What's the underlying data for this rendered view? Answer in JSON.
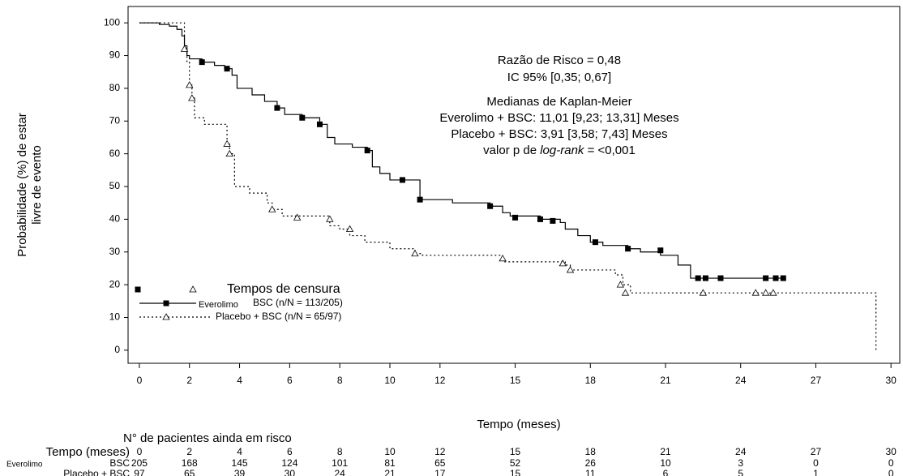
{
  "chart_data": {
    "type": "line",
    "step": "post",
    "x_label": "Tempo (meses)",
    "y_label": [
      "Probabilidade (%) de estar",
      "livre de evento"
    ],
    "xlim": [
      -0.45,
      30.35
    ],
    "ylim": [
      -4,
      105
    ],
    "xticks": [
      0,
      2,
      4,
      6,
      8,
      10,
      12,
      15,
      18,
      21,
      24,
      27,
      30
    ],
    "yticks": [
      0,
      10,
      20,
      30,
      40,
      50,
      60,
      70,
      80,
      90,
      100
    ],
    "annotations": [
      "Razão de Risco = 0,48",
      "IC 95% [0,35; 0,67]",
      "Medianas de Kaplan-Meier",
      "Everolimo + BSC: 11,01 [9,23; 13,31] Meses",
      "Placebo + BSC: 3,91 [3,58; 7,43] Meses"
    ],
    "pvalue_text": [
      "valor p de ",
      "log-rank",
      " = <0,001"
    ],
    "censor_legend": "Tempos de censura",
    "series": [
      {
        "name": "Everolimo",
        "name_suffix": "BSC (n/N = 113/205)",
        "color": "#000000",
        "dash": "solid",
        "marker": "square",
        "x": [
          0,
          0.8,
          1.2,
          1.5,
          1.7,
          1.8,
          1.9,
          2.0,
          2.5,
          3.0,
          3.4,
          3.7,
          3.9,
          4.5,
          5.0,
          5.5,
          5.8,
          6.5,
          7.2,
          7.5,
          7.8,
          8.5,
          9.1,
          9.3,
          9.6,
          10.0,
          11.2,
          12.5,
          14.0,
          14.5,
          14.8,
          16.0,
          16.8,
          17.0,
          17.5,
          18.0,
          18.5,
          19.5,
          20.0,
          20.8,
          21.5,
          22.0,
          25.8
        ],
        "values": [
          100,
          99.5,
          99,
          98,
          96,
          93,
          90,
          89,
          88,
          87,
          86,
          84,
          80,
          78,
          76,
          74,
          72,
          71,
          69,
          65,
          63,
          62,
          61,
          56,
          54,
          52,
          46,
          45,
          44,
          42,
          41,
          40,
          39,
          37,
          35,
          33,
          32,
          31,
          30,
          29,
          26,
          22,
          22
        ],
        "censored": {
          "x": [
            2.5,
            3.5,
            5.5,
            6.5,
            7.2,
            9.1,
            10.5,
            11.2,
            14.0,
            15.0,
            16.0,
            16.5,
            18.2,
            19.5,
            20.8,
            22.3,
            22.6,
            23.2,
            25.0,
            25.4,
            25.7
          ],
          "values": [
            88,
            86,
            74,
            71,
            69,
            61,
            52,
            46,
            44,
            40.5,
            40,
            39.5,
            33,
            31,
            30.5,
            22,
            22,
            22,
            22,
            22,
            22
          ]
        }
      },
      {
        "name": "Placebo + BSC (n/N = 65/97)",
        "color": "#000000",
        "dash": "dotted",
        "marker": "triangle",
        "x": [
          0,
          1.8,
          1.9,
          2.0,
          2.1,
          2.2,
          2.6,
          3.5,
          3.6,
          3.8,
          4.4,
          5.1,
          5.3,
          5.7,
          7.6,
          8.0,
          8.4,
          9.0,
          10.0,
          11.0,
          11.3,
          14.5,
          17.0,
          17.2,
          19.0,
          19.3,
          19.6,
          29.4
        ],
        "values": [
          100,
          92,
          88,
          81,
          77,
          71,
          69,
          63,
          60,
          50,
          48,
          45,
          43,
          41,
          38,
          37,
          35,
          33,
          31,
          29.5,
          29,
          27,
          26,
          24.5,
          23,
          20,
          17.5,
          0
        ],
        "censored": {
          "x": [
            1.8,
            2.0,
            2.1,
            3.5,
            3.6,
            5.3,
            6.3,
            7.6,
            8.4,
            11.0,
            14.5,
            16.9,
            17.2,
            19.2,
            19.4,
            22.5,
            24.6,
            25.0,
            25.3
          ],
          "values": [
            92,
            81,
            77,
            63,
            60,
            43,
            40.5,
            40,
            37,
            29.5,
            28,
            26.5,
            24.5,
            20,
            17.5,
            17.5,
            17.5,
            17.5,
            17.5
          ]
        }
      }
    ],
    "risk_table": {
      "title": "N° de pacientes ainda em risco",
      "header_label": "Tempo (meses)",
      "times": [
        0,
        2,
        4,
        6,
        8,
        10,
        12,
        15,
        18,
        21,
        24,
        27,
        30
      ],
      "rows": [
        {
          "label": "Everolimo",
          "label_suffix": "BSC",
          "counts": [
            205,
            168,
            145,
            124,
            101,
            81,
            65,
            52,
            26,
            10,
            3,
            0,
            0
          ]
        },
        {
          "label": "Placebo + BSC",
          "counts": [
            97,
            65,
            39,
            30,
            24,
            21,
            17,
            15,
            11,
            6,
            5,
            1,
            0
          ]
        }
      ]
    }
  }
}
